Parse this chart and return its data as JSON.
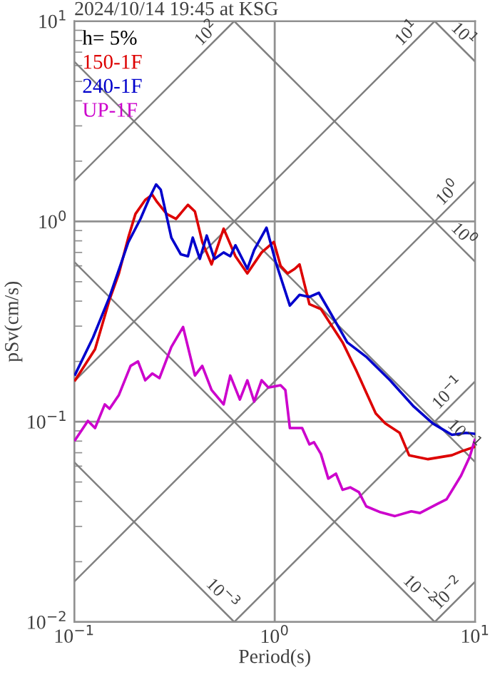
{
  "chart_data": {
    "type": "line",
    "title": "2024/10/14 19:45 at KSG",
    "xlabel": "Period(s)",
    "ylabel": "pSv(cm/s)",
    "annotations": [
      "h= 5%",
      {
        "text": "10$^{2}$",
        "x": 0.5,
        "y": 7.96
      },
      {
        "text": "10$^{1}$",
        "x": 5,
        "y": 7.96
      },
      {
        "text": "10$^{0}$",
        "x": 8,
        "y": 1.27
      },
      {
        "text": "10$^{−1}$",
        "x": 8,
        "y": 0.127
      },
      {
        "text": "10$^{−2}$",
        "x": 8,
        "y": 0.0127
      },
      {
        "text": "10$^{1}$",
        "x": 8,
        "y": 7.85
      },
      {
        "text": "10$^{0}$",
        "x": 8,
        "y": 0.785
      },
      {
        "text": "10$^{−1}$",
        "x": 8,
        "y": 0.0785
      },
      {
        "text": "10$^{−2}$",
        "x": 4.8,
        "y": 0.0131
      },
      {
        "text": "10$^{−3}$",
        "x": 0.5,
        "y": 0.0126
      }
    ],
    "log": "xy",
    "grid": true,
    "legend": "top left",
    "xlim": [
      0.1,
      10
    ],
    "ylim": [
      0.01,
      10
    ],
    "xticks": [
      {
        "value": 0.1,
        "label": "10$^{−1}$"
      },
      {
        "value": 1,
        "label": "10$^{0}$"
      },
      {
        "value": 10,
        "label": "10$^{1}$"
      }
    ],
    "yticks": [
      {
        "value": 0.01,
        "label": "10$^{−2}$"
      },
      {
        "value": 0.1,
        "label": "10$^{−1}$"
      },
      {
        "value": 1,
        "label": "10$^{0}$"
      },
      {
        "value": 10,
        "label": "10$^{1}$"
      }
    ],
    "series": [
      {
        "type": "line",
        "color": "#808080",
        "x": [
          0.1,
          0.628
        ],
        "values": [
          1.59,
          10
        ]
      },
      {
        "type": "line",
        "color": "#808080",
        "x": [
          0.1,
          6.28
        ],
        "values": [
          0.159,
          10
        ]
      },
      {
        "type": "line",
        "color": "#808080",
        "x": [
          0.1,
          10
        ],
        "values": [
          0.0159,
          1.59
        ]
      },
      {
        "type": "line",
        "color": "#808080",
        "x": [
          0.628,
          10
        ],
        "values": [
          0.01,
          0.159
        ]
      },
      {
        "type": "line",
        "color": "#808080",
        "x": [
          6.28,
          10
        ],
        "values": [
          0.01,
          0.0159
        ]
      },
      {
        "type": "line",
        "color": "#808080",
        "x": [
          6.28,
          10
        ],
        "values": [
          10,
          6.28
        ]
      },
      {
        "type": "line",
        "color": "#808080",
        "x": [
          0.628,
          10
        ],
        "values": [
          10,
          0.628
        ]
      },
      {
        "type": "line",
        "color": "#808080",
        "x": [
          0.1,
          10
        ],
        "values": [
          6.28,
          0.0628
        ]
      },
      {
        "type": "line",
        "color": "#808080",
        "x": [
          0.1,
          6.28
        ],
        "values": [
          0.628,
          0.01
        ]
      },
      {
        "type": "line",
        "color": "#808080",
        "x": [
          0.1,
          0.628
        ],
        "values": [
          0.0628,
          0.01
        ]
      },
      {
        "name": "150-1F",
        "color": "#dd0000",
        "x": [
          0.101,
          0.127,
          0.15,
          0.167,
          0.186,
          0.202,
          0.226,
          0.245,
          0.259,
          0.289,
          0.322,
          0.369,
          0.4,
          0.435,
          0.484,
          0.556,
          0.637,
          0.73,
          0.86,
          0.99,
          1.07,
          1.16,
          1.26,
          1.33,
          1.49,
          1.7,
          2.18,
          2.56,
          3.19,
          3.56,
          4.2,
          4.68,
          5.82,
          7.65,
          8.5,
          9.95
        ],
        "values": [
          0.161,
          0.23,
          0.407,
          0.55,
          0.83,
          1.09,
          1.28,
          1.36,
          1.25,
          1.09,
          1.03,
          1.21,
          1.12,
          0.79,
          0.61,
          0.92,
          0.67,
          0.55,
          0.7,
          0.79,
          0.6,
          0.55,
          0.58,
          0.61,
          0.386,
          0.365,
          0.249,
          0.179,
          0.11,
          0.098,
          0.088,
          0.068,
          0.065,
          0.068,
          0.071,
          0.075
        ]
      },
      {
        "name": "240-1F",
        "color": "#0000cc",
        "x": [
          0.101,
          0.124,
          0.15,
          0.186,
          0.214,
          0.238,
          0.256,
          0.27,
          0.305,
          0.34,
          0.369,
          0.39,
          0.423,
          0.458,
          0.5,
          0.556,
          0.6,
          0.637,
          0.73,
          0.79,
          0.91,
          1.01,
          1.19,
          1.33,
          1.49,
          1.66,
          1.85,
          2.3,
          2.86,
          3.76,
          4.94,
          6.15,
          7.65,
          9.0,
          9.95
        ],
        "values": [
          0.172,
          0.263,
          0.42,
          0.786,
          1.03,
          1.32,
          1.53,
          1.44,
          0.83,
          0.685,
          0.67,
          0.83,
          0.65,
          0.85,
          0.65,
          0.7,
          0.67,
          0.76,
          0.58,
          0.72,
          0.93,
          0.63,
          0.38,
          0.43,
          0.42,
          0.44,
          0.365,
          0.249,
          0.211,
          0.161,
          0.119,
          0.098,
          0.086,
          0.088,
          0.087
        ]
      },
      {
        "name": "UP-1F",
        "color": "#cc00cc",
        "x": [
          0.101,
          0.117,
          0.127,
          0.142,
          0.15,
          0.167,
          0.191,
          0.208,
          0.226,
          0.245,
          0.266,
          0.305,
          0.349,
          0.4,
          0.435,
          0.484,
          0.556,
          0.6,
          0.67,
          0.73,
          0.79,
          0.86,
          0.93,
          1.07,
          1.13,
          1.19,
          1.37,
          1.49,
          1.57,
          1.7,
          1.85,
          2.02,
          2.18,
          2.38,
          2.63,
          2.86,
          3.37,
          3.98,
          4.8,
          5.3,
          6.45,
          7.2,
          8.5,
          9.4,
          9.95
        ],
        "values": [
          0.081,
          0.101,
          0.093,
          0.122,
          0.116,
          0.136,
          0.19,
          0.2,
          0.161,
          0.174,
          0.165,
          0.236,
          0.297,
          0.17,
          0.19,
          0.144,
          0.122,
          0.17,
          0.129,
          0.161,
          0.126,
          0.161,
          0.148,
          0.152,
          0.144,
          0.093,
          0.093,
          0.077,
          0.079,
          0.069,
          0.052,
          0.055,
          0.0457,
          0.047,
          0.0445,
          0.0378,
          0.0353,
          0.0338,
          0.0357,
          0.035,
          0.0388,
          0.041,
          0.0538,
          0.067,
          0.081
        ]
      }
    ]
  }
}
